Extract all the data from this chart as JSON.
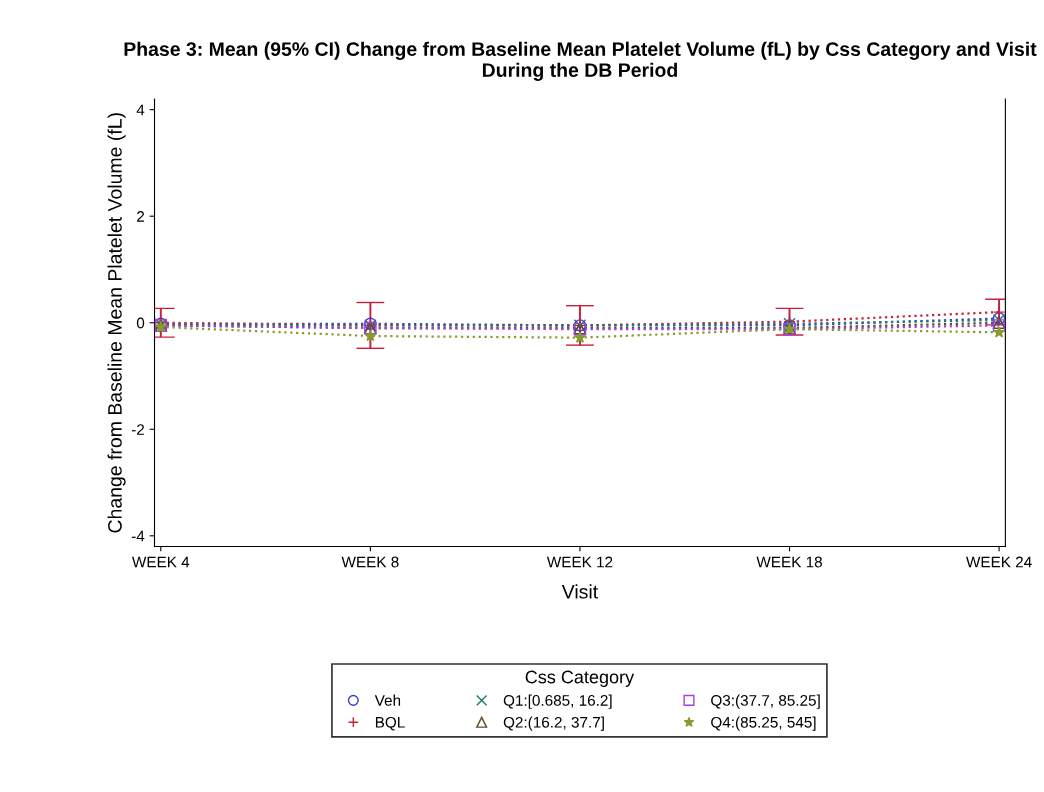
{
  "chart_data": {
    "type": "line",
    "title": "Phase 3: Mean (95% CI) Change from Baseline Mean Platelet Volume (fL) by Css Category and Visit During the DB Period",
    "xlabel": "Visit",
    "ylabel": "Change from Baseline Mean Platelet Volume (fL)",
    "legend_title": "Css Category",
    "categories": [
      "WEEK 4",
      "WEEK 8",
      "WEEK 12",
      "WEEK 18",
      "WEEK 24"
    ],
    "ylim": [
      -4.2,
      4.2
    ],
    "yticks": [
      -4,
      -2,
      0,
      2,
      4
    ],
    "grid": false,
    "legend": "bottom",
    "line_style": "dotted",
    "series": [
      {
        "name": "Veh",
        "color": "#3a3ad0",
        "marker": "circle",
        "values": [
          -0.02,
          -0.02,
          -0.05,
          -0.05,
          0.08
        ]
      },
      {
        "name": "BQL",
        "color": "#c8203c",
        "marker": "plus",
        "values": [
          0.0,
          -0.05,
          -0.05,
          0.02,
          0.2
        ],
        "errors": [
          0.27,
          0.43,
          0.37,
          0.25,
          0.24
        ]
      },
      {
        "name": "Q1:[0.685, 16.2]",
        "color": "#1f7a6e",
        "marker": "cross",
        "values": [
          -0.03,
          -0.05,
          -0.05,
          -0.02,
          0.05
        ]
      },
      {
        "name": "Q2:(16.2, 37.7]",
        "color": "#5a4a2a",
        "marker": "triangle",
        "values": [
          -0.05,
          -0.1,
          -0.1,
          -0.1,
          0.0
        ]
      },
      {
        "name": "Q3:(37.7, 85.25]",
        "color": "#a040e0",
        "marker": "square",
        "values": [
          -0.05,
          -0.1,
          -0.12,
          -0.12,
          -0.05
        ]
      },
      {
        "name": "Q4:(85.25, 545]",
        "color": "#8a9a30",
        "marker": "star",
        "values": [
          -0.08,
          -0.25,
          -0.28,
          -0.12,
          -0.18
        ]
      }
    ]
  }
}
